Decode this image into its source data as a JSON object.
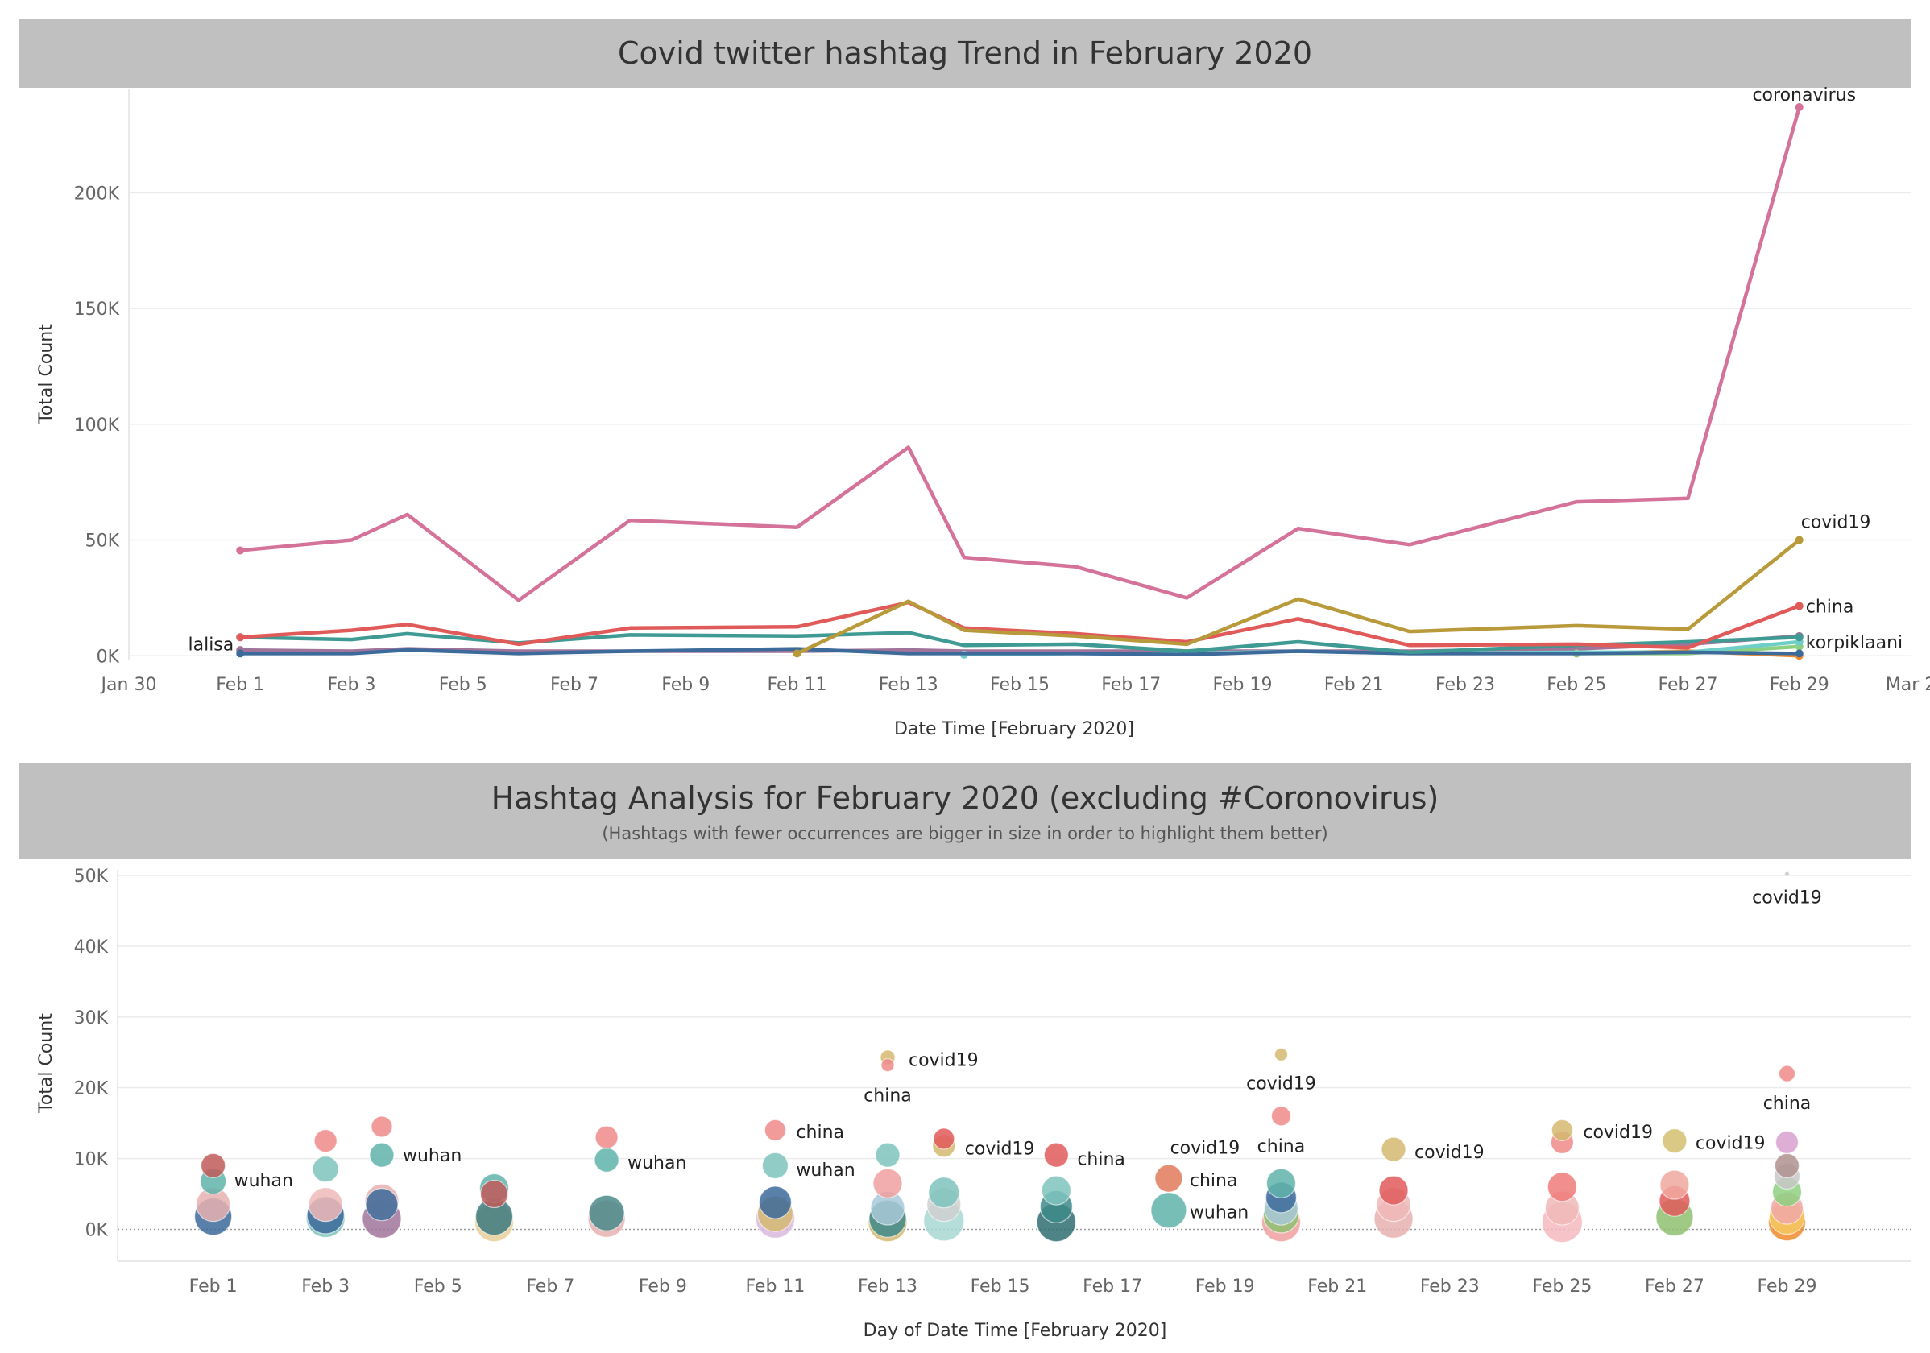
{
  "colors": {
    "coronavirus": "#d4729a",
    "covid19": "#b99a3a",
    "china": "#e05a5a",
    "wuhan": "#3e9a92",
    "navy": "#3c6a9a",
    "orange": "#f08a2c",
    "teal_light": "#6fcfc8",
    "green_light": "#8ed081",
    "mauve": "#a0749a",
    "band": "#c0c0c0"
  },
  "trend": {
    "title": "Covid twitter hashtag Trend in February 2020",
    "xlabel": "Date Time [February 2020]",
    "ylabel": "Total Count",
    "x_ticks": [
      "Jan 30",
      "Feb 1",
      "Feb 3",
      "Feb 5",
      "Feb 7",
      "Feb 9",
      "Feb 11",
      "Feb 13",
      "Feb 15",
      "Feb 17",
      "Feb 19",
      "Feb 21",
      "Feb 23",
      "Feb 25",
      "Feb 27",
      "Feb 29",
      "Mar 2"
    ],
    "y_ticks": [
      "0K",
      "50K",
      "100K",
      "150K",
      "200K"
    ]
  },
  "analysis": {
    "title": "Hashtag Analysis for February 2020 (excluding #Coronovirus)",
    "subtitle": "(Hashtags with fewer occurrences are bigger in size in order to highlight them better)",
    "xlabel": "Day of Date Time [February 2020]",
    "ylabel": "Total Count",
    "x_ticks": [
      "Feb 1",
      "Feb 3",
      "Feb 5",
      "Feb 7",
      "Feb 9",
      "Feb 11",
      "Feb 13",
      "Feb 15",
      "Feb 17",
      "Feb 19",
      "Feb 21",
      "Feb 23",
      "Feb 25",
      "Feb 27",
      "Feb 29"
    ],
    "y_ticks": [
      "0K",
      "10K",
      "20K",
      "30K",
      "40K",
      "50K"
    ]
  },
  "chart_data": [
    {
      "type": "line",
      "title": "Covid twitter hashtag Trend in February 2020",
      "xlabel": "Date Time [February 2020]",
      "ylabel": "Total Count",
      "x_unit": "day of February 2020",
      "xlim": [
        -1,
        31
      ],
      "ylim": [
        -2000,
        245000
      ],
      "grid": true,
      "x": [
        1,
        3,
        4,
        6,
        8,
        11,
        13,
        14,
        16,
        18,
        20,
        22,
        25,
        27,
        29
      ],
      "series": [
        {
          "name": "coronavirus",
          "color": "#d4729a",
          "label": "coronavirus",
          "values": [
            45500,
            50000,
            61000,
            24000,
            58500,
            55500,
            90000,
            42500,
            38500,
            25000,
            55000,
            48000,
            66500,
            68000,
            237000
          ]
        },
        {
          "name": "covid19",
          "color": "#b99a3a",
          "label": "covid19",
          "values": [
            null,
            null,
            null,
            null,
            null,
            1000,
            23500,
            11000,
            8500,
            5000,
            24500,
            10500,
            13000,
            11500,
            50000
          ]
        },
        {
          "name": "china",
          "color": "#e05a5a",
          "label": "china",
          "values": [
            8000,
            11000,
            13500,
            5000,
            12000,
            12500,
            23000,
            12000,
            9500,
            6000,
            16000,
            4500,
            5000,
            3500,
            21500
          ]
        },
        {
          "name": "wuhan",
          "color": "#3e9a92",
          "values": [
            8000,
            7000,
            9500,
            5500,
            9000,
            8500,
            10000,
            4500,
            5000,
            2000,
            6000,
            1500,
            4500,
            6000,
            8000
          ]
        },
        {
          "name": "lalisa",
          "color": "#3c6a9a",
          "label": "lalisa",
          "label_side": "left",
          "values": [
            1000,
            1000,
            2500,
            1000,
            2000,
            3000,
            1000,
            1000,
            1000,
            500,
            2000,
            1000,
            1000,
            1500,
            1000
          ]
        },
        {
          "name": "korpiklaani",
          "color": "#6fcfc8",
          "label": "korpiklaani",
          "values": [
            null,
            null,
            null,
            null,
            null,
            null,
            null,
            500,
            1000,
            1000,
            2000,
            1000,
            1500,
            1500,
            6000
          ]
        },
        {
          "name": "",
          "color": "#8ed081",
          "values": [
            null,
            null,
            null,
            null,
            null,
            null,
            null,
            null,
            null,
            null,
            null,
            null,
            1000,
            1000,
            4000
          ]
        },
        {
          "name": "",
          "color": "#f08a2c",
          "values": [
            null,
            null,
            null,
            null,
            null,
            null,
            null,
            null,
            null,
            null,
            null,
            null,
            1000,
            2000,
            0
          ]
        },
        {
          "name": "",
          "color": "#a0749a",
          "values": [
            2500,
            2000,
            3000,
            2000,
            2000,
            2000,
            2500,
            2000,
            2000,
            2000,
            2000,
            2000,
            3000,
            5000,
            8500
          ]
        }
      ]
    },
    {
      "type": "scatter",
      "title": "Hashtag Analysis for February 2020 (excluding #Coronovirus)",
      "subtitle": "(Hashtags with fewer occurrences are bigger in size in order to highlight them better)",
      "xlabel": "Day of Date Time [February 2020]",
      "ylabel": "Total Count",
      "x_unit": "day of February 2020",
      "xlim": [
        -0.7,
        31.2
      ],
      "ylim": [
        -4500,
        50800
      ],
      "grid": true,
      "reference_line": 0,
      "points": [
        {
          "x": 1,
          "y": 9000,
          "name": "china",
          "color": "#c05a5a",
          "size": 15
        },
        {
          "x": 1,
          "y": 6800,
          "name": "wuhan",
          "color": "#5fb3aa",
          "size": 16
        },
        {
          "x": 1,
          "y": 3500,
          "color": "#e8b0b0",
          "size": 21
        },
        {
          "x": 1,
          "y": 1800,
          "color": "#3c6a9a",
          "size": 23
        },
        {
          "x": 3,
          "y": 12500,
          "name": "china",
          "color": "#ee8a8a",
          "size": 14
        },
        {
          "x": 3,
          "y": 8500,
          "name": "wuhan",
          "color": "#7ec3bc",
          "size": 16
        },
        {
          "x": 3,
          "y": 3500,
          "color": "#f0b8b8",
          "size": 21
        },
        {
          "x": 3,
          "y": 1600,
          "color": "#7ec3bc",
          "size": 24
        },
        {
          "x": 3,
          "y": 2000,
          "color": "#3c6a9a",
          "size": 23
        },
        {
          "x": 4,
          "y": 14500,
          "name": "china",
          "color": "#ee8a8a",
          "size": 13
        },
        {
          "x": 4,
          "y": 10500,
          "name": "wuhan",
          "color": "#5fb3aa",
          "size": 15
        },
        {
          "x": 4,
          "y": 4000,
          "color": "#e8b0b0",
          "size": 21
        },
        {
          "x": 4,
          "y": 1500,
          "color": "#a0749a",
          "size": 24
        },
        {
          "x": 4,
          "y": 3500,
          "color": "#3c6a9a",
          "size": 20
        },
        {
          "x": 6,
          "y": 5800,
          "name": "wuhan",
          "color": "#5fb3aa",
          "size": 18
        },
        {
          "x": 6,
          "y": 5000,
          "name": "china",
          "color": "#c05a5a",
          "size": 17
        },
        {
          "x": 6,
          "y": 1000,
          "color": "#e8cf9a",
          "size": 24
        },
        {
          "x": 6,
          "y": 1800,
          "color": "#3e7a80",
          "size": 23
        },
        {
          "x": 8,
          "y": 13000,
          "name": "china",
          "color": "#ee8a8a",
          "size": 14
        },
        {
          "x": 8,
          "y": 9800,
          "name": "wuhan",
          "color": "#5fb3aa",
          "size": 15
        },
        {
          "x": 8,
          "y": 1500,
          "color": "#e8b0b0",
          "size": 23
        },
        {
          "x": 8,
          "y": 2300,
          "color": "#4a8a8a",
          "size": 22
        },
        {
          "x": 11,
          "y": 14000,
          "name": "china",
          "color": "#ee8a8a",
          "size": 13
        },
        {
          "x": 11,
          "y": 9000,
          "name": "wuhan",
          "color": "#7ec3bc",
          "size": 16
        },
        {
          "x": 11,
          "y": 1500,
          "color": "#d9b8dd",
          "size": 24
        },
        {
          "x": 11,
          "y": 2200,
          "color": "#d4b870",
          "size": 22
        },
        {
          "x": 11,
          "y": 3800,
          "color": "#3c6a9a",
          "size": 20
        },
        {
          "x": 13,
          "y": 24300,
          "name": "covid19",
          "color": "#d4b870",
          "size": 9
        },
        {
          "x": 13,
          "y": 23200,
          "name": "china",
          "color": "#ee8a8a",
          "size": 8
        },
        {
          "x": 13,
          "y": 10500,
          "color": "#7ec3bc",
          "size": 15
        },
        {
          "x": 13,
          "y": 6500,
          "color": "#f0a0a0",
          "size": 18
        },
        {
          "x": 13,
          "y": 3000,
          "color": "#a8c8d8",
          "size": 21
        },
        {
          "x": 13,
          "y": 1000,
          "color": "#d4b870",
          "size": 24
        },
        {
          "x": 13,
          "y": 1500,
          "color": "#3e8a8a",
          "size": 23
        },
        {
          "x": 14,
          "y": 12800,
          "name": "china",
          "color": "#e05a5a",
          "size": 13
        },
        {
          "x": 14,
          "y": 11800,
          "name": "covid19",
          "color": "#d4b870",
          "size": 14
        },
        {
          "x": 14,
          "y": 5200,
          "color": "#7ec3bc",
          "size": 19
        },
        {
          "x": 14,
          "y": 3500,
          "color": "#d0d0d0",
          "size": 21
        },
        {
          "x": 14,
          "y": 1200,
          "color": "#a8d8d4",
          "size": 25
        },
        {
          "x": 16,
          "y": 10500,
          "name": "china",
          "color": "#e05a5a",
          "size": 15
        },
        {
          "x": 16,
          "y": 5500,
          "color": "#7ec3bc",
          "size": 18
        },
        {
          "x": 16,
          "y": 3200,
          "color": "#3e8a8a",
          "size": 20
        },
        {
          "x": 16,
          "y": 1000,
          "color": "#2f6f70",
          "size": 24
        },
        {
          "x": 18,
          "y": 7200,
          "name": "china",
          "color": "#e07a5a",
          "size": 17
        },
        {
          "x": 18,
          "y": 2700,
          "name": "wuhan",
          "color": "#5fb3aa",
          "size": 22
        },
        {
          "x": 20,
          "y": 24700,
          "name": "covid19",
          "color": "#d4b870",
          "size": 8
        },
        {
          "x": 20,
          "y": 16000,
          "name": "china",
          "color": "#ee8a8a",
          "size": 12
        },
        {
          "x": 20,
          "y": 6500,
          "color": "#5fb3aa",
          "size": 18
        },
        {
          "x": 20,
          "y": 4500,
          "color": "#3c6a9a",
          "size": 19
        },
        {
          "x": 20,
          "y": 3000,
          "color": "#a8c8d8",
          "size": 21
        },
        {
          "x": 20,
          "y": 1000,
          "color": "#f0a0a0",
          "size": 24
        },
        {
          "x": 20,
          "y": 2000,
          "color": "#8ec070",
          "size": 22
        },
        {
          "x": 22,
          "y": 11300,
          "name": "covid19",
          "color": "#d4b870",
          "size": 15
        },
        {
          "x": 22,
          "y": 5500,
          "color": "#e05a5a",
          "size": 18
        },
        {
          "x": 22,
          "y": 3500,
          "color": "#f0b8b8",
          "size": 21
        },
        {
          "x": 22,
          "y": 1500,
          "color": "#e8b0b0",
          "size": 24
        },
        {
          "x": 25,
          "y": 14000,
          "name": "covid19",
          "color": "#d4b870",
          "size": 13
        },
        {
          "x": 25,
          "y": 12300,
          "name": "china",
          "color": "#ee8a8a",
          "size": 14
        },
        {
          "x": 25,
          "y": 6000,
          "color": "#ee7a7a",
          "size": 18
        },
        {
          "x": 25,
          "y": 3000,
          "color": "#f0b8b8",
          "size": 21
        },
        {
          "x": 25,
          "y": 1000,
          "color": "#f4b8c0",
          "size": 25
        },
        {
          "x": 27,
          "y": 12500,
          "name": "covid19",
          "color": "#d4c070",
          "size": 15
        },
        {
          "x": 27,
          "y": 6300,
          "color": "#f0a8a0",
          "size": 18
        },
        {
          "x": 27,
          "y": 4000,
          "color": "#e05a5a",
          "size": 19
        },
        {
          "x": 27,
          "y": 1700,
          "color": "#8ec070",
          "size": 23
        },
        {
          "x": 29,
          "y": 50200,
          "name": "covid19",
          "color": "#c8c8c8",
          "size": 3
        },
        {
          "x": 29,
          "y": 22000,
          "name": "china",
          "color": "#ee8a8a",
          "size": 10
        },
        {
          "x": 29,
          "y": 12300,
          "color": "#d9a0d0",
          "size": 14
        },
        {
          "x": 29,
          "y": 9000,
          "color": "#b09090",
          "size": 15
        },
        {
          "x": 29,
          "y": 7500,
          "color": "#c8c8c8",
          "size": 16
        },
        {
          "x": 29,
          "y": 5300,
          "color": "#8ed081",
          "size": 18
        },
        {
          "x": 29,
          "y": 3000,
          "color": "#f0a8a8",
          "size": 20
        },
        {
          "x": 29,
          "y": 1800,
          "color": "#f5c860",
          "size": 22
        },
        {
          "x": 29,
          "y": 1000,
          "color": "#f08a2c",
          "size": 23
        }
      ],
      "labels": [
        {
          "text": "wuhan",
          "x": 1,
          "y": 7000,
          "anchor": "right"
        },
        {
          "text": "wuhan",
          "x": 4,
          "y": 10500,
          "anchor": "right"
        },
        {
          "text": "wuhan",
          "x": 8,
          "y": 9500,
          "anchor": "right"
        },
        {
          "text": "china",
          "x": 11,
          "y": 13800,
          "anchor": "right"
        },
        {
          "text": "wuhan",
          "x": 11,
          "y": 8500,
          "anchor": "right"
        },
        {
          "text": "covid19",
          "x": 13,
          "y": 24000,
          "anchor": "right"
        },
        {
          "text": "china",
          "x": 13,
          "y": 19000,
          "anchor": "center"
        },
        {
          "text": "covid19",
          "x": 14,
          "y": 11500,
          "anchor": "right"
        },
        {
          "text": "china",
          "x": 16,
          "y": 10000,
          "anchor": "right"
        },
        {
          "text": "covid19",
          "x": 18,
          "y": 11600,
          "anchor": "centerright"
        },
        {
          "text": "china",
          "x": 18,
          "y": 7000,
          "anchor": "right"
        },
        {
          "text": "wuhan",
          "x": 18,
          "y": 2500,
          "anchor": "right"
        },
        {
          "text": "covid19",
          "x": 20,
          "y": 20700,
          "anchor": "center"
        },
        {
          "text": "china",
          "x": 20,
          "y": 11800,
          "anchor": "center"
        },
        {
          "text": "covid19",
          "x": 22,
          "y": 11000,
          "anchor": "right"
        },
        {
          "text": "covid19",
          "x": 25,
          "y": 13800,
          "anchor": "right"
        },
        {
          "text": "covid19",
          "x": 27,
          "y": 12300,
          "anchor": "right"
        },
        {
          "text": "covid19",
          "x": 29,
          "y": 47000,
          "anchor": "center"
        },
        {
          "text": "china",
          "x": 29,
          "y": 17900,
          "anchor": "center"
        }
      ]
    }
  ]
}
